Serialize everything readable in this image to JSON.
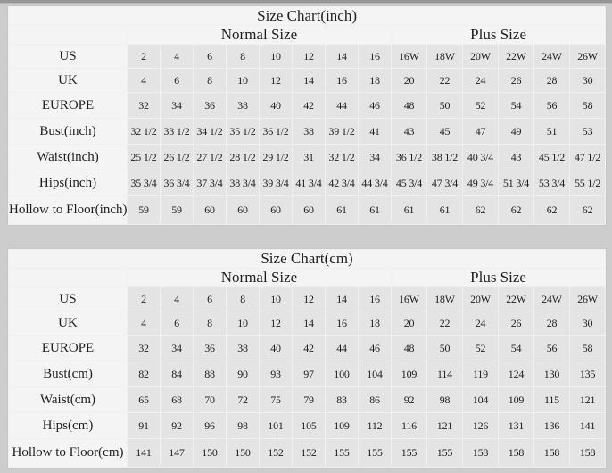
{
  "page": {
    "background": "#cdcdcd",
    "top_bar_color": "#969696"
  },
  "colors": {
    "table_border": "#c6c6c6",
    "table_gap": "#f0f0f0",
    "label_cell_bg": "#f4f4f4",
    "value_cell_bg": "#e4e4e4",
    "text": "#1e1e1e"
  },
  "chart_data": [
    {
      "type": "table",
      "title": "Size Chart(inch)",
      "group_headers": [
        "Normal Size",
        "Plus Size"
      ],
      "normal_columns": 8,
      "plus_columns": 6,
      "rows": [
        {
          "label": "US",
          "values": [
            "2",
            "4",
            "6",
            "8",
            "10",
            "12",
            "14",
            "16",
            "16W",
            "18W",
            "20W",
            "22W",
            "24W",
            "26W"
          ]
        },
        {
          "label": "UK",
          "values": [
            "4",
            "6",
            "8",
            "10",
            "12",
            "14",
            "16",
            "18",
            "20",
            "22",
            "24",
            "26",
            "28",
            "30"
          ]
        },
        {
          "label": "EUROPE",
          "values": [
            "32",
            "34",
            "36",
            "38",
            "40",
            "42",
            "44",
            "46",
            "48",
            "50",
            "52",
            "54",
            "56",
            "58"
          ]
        },
        {
          "label": "Bust(inch)",
          "values": [
            "32 1/2",
            "33 1/2",
            "34 1/2",
            "35 1/2",
            "36 1/2",
            "38",
            "39 1/2",
            "41",
            "43",
            "45",
            "47",
            "49",
            "51",
            "53"
          ]
        },
        {
          "label": "Waist(inch)",
          "values": [
            "25 1/2",
            "26 1/2",
            "27 1/2",
            "28 1/2",
            "29 1/2",
            "31",
            "32 1/2",
            "34",
            "36 1/2",
            "38 1/2",
            "40 3/4",
            "43",
            "45 1/2",
            "47 1/2"
          ]
        },
        {
          "label": "Hips(inch)",
          "values": [
            "35 3/4",
            "36 3/4",
            "37 3/4",
            "38 3/4",
            "39 3/4",
            "41 3/4",
            "42 3/4",
            "44 3/4",
            "45 3/4",
            "47 3/4",
            "49 3/4",
            "51 3/4",
            "53 3/4",
            "55 1/2"
          ]
        },
        {
          "label": "Hollow to Floor(inch)",
          "values": [
            "59",
            "59",
            "60",
            "60",
            "60",
            "60",
            "61",
            "61",
            "61",
            "61",
            "62",
            "62",
            "62",
            "62"
          ]
        }
      ]
    },
    {
      "type": "table",
      "title": "Size Chart(cm)",
      "group_headers": [
        "Normal Size",
        "Plus Size"
      ],
      "normal_columns": 8,
      "plus_columns": 6,
      "rows": [
        {
          "label": "US",
          "values": [
            "2",
            "4",
            "6",
            "8",
            "10",
            "12",
            "14",
            "16",
            "16W",
            "18W",
            "20W",
            "22W",
            "24W",
            "26W"
          ]
        },
        {
          "label": "UK",
          "values": [
            "4",
            "6",
            "8",
            "10",
            "12",
            "14",
            "16",
            "18",
            "20",
            "22",
            "24",
            "26",
            "28",
            "30"
          ]
        },
        {
          "label": "EUROPE",
          "values": [
            "32",
            "34",
            "36",
            "38",
            "40",
            "42",
            "44",
            "46",
            "48",
            "50",
            "52",
            "54",
            "56",
            "58"
          ]
        },
        {
          "label": "Bust(cm)",
          "values": [
            "82",
            "84",
            "88",
            "90",
            "93",
            "97",
            "100",
            "104",
            "109",
            "114",
            "119",
            "124",
            "130",
            "135"
          ]
        },
        {
          "label": "Waist(cm)",
          "values": [
            "65",
            "68",
            "70",
            "72",
            "75",
            "79",
            "83",
            "86",
            "92",
            "98",
            "104",
            "109",
            "115",
            "121"
          ]
        },
        {
          "label": "Hips(cm)",
          "values": [
            "91",
            "92",
            "96",
            "98",
            "101",
            "105",
            "109",
            "112",
            "116",
            "121",
            "126",
            "131",
            "136",
            "141"
          ]
        },
        {
          "label": "Hollow to Floor(cm)",
          "values": [
            "141",
            "147",
            "150",
            "150",
            "152",
            "152",
            "155",
            "155",
            "155",
            "155",
            "158",
            "158",
            "158",
            "158"
          ]
        }
      ]
    }
  ]
}
